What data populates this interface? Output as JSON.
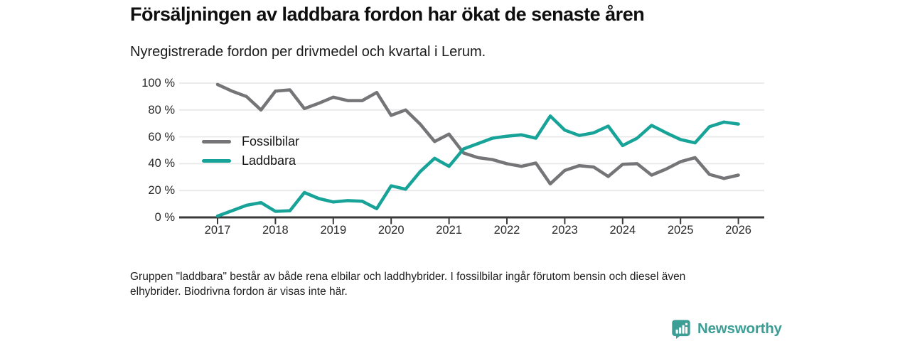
{
  "header": {
    "title": "Försäljningen av laddbara fordon har ökat de senaste åren",
    "subtitle": "Nyregistrerade fordon per drivmedel och kvartal i Lerum."
  },
  "chart_data": {
    "type": "line",
    "title": "Försäljningen av laddbara fordon har ökat de senaste åren",
    "subtitle": "Nyregistrerade fordon per drivmedel och kvartal i Lerum.",
    "x_tick_labels": [
      "2017",
      "2018",
      "2019",
      "2020",
      "2021",
      "2022",
      "2023",
      "2024",
      "2025",
      "2026"
    ],
    "points_per_year": 4,
    "x_range": [
      "2017 Q1",
      "2026 Q1"
    ],
    "y_ticks": [
      0,
      20,
      40,
      60,
      80,
      100
    ],
    "y_tick_suffix": " %",
    "ylim": [
      0,
      100
    ],
    "grid": "horizontal",
    "legend_position": "inside-left",
    "series": [
      {
        "name": "Fossilbilar",
        "color": "#757578",
        "values": [
          99,
          94,
          90,
          80,
          94,
          95,
          81,
          85,
          89.5,
          87,
          87,
          93,
          76,
          80,
          69.5,
          56.5,
          62,
          48,
          44.5,
          43,
          40,
          38,
          40.5,
          25,
          35,
          38.5,
          37.5,
          30.5,
          39.5,
          40,
          31.5,
          36,
          41.5,
          44.5,
          32,
          29,
          31.5
        ]
      },
      {
        "name": "Laddbara",
        "color": "#17A398",
        "values": [
          1,
          5,
          9,
          11,
          4.5,
          5,
          18.5,
          14,
          11.5,
          12.5,
          12,
          6.5,
          23.5,
          21,
          34,
          44,
          38,
          51,
          55,
          59,
          60.5,
          61.5,
          59,
          75.5,
          65,
          61,
          63,
          68,
          53.5,
          59,
          68.5,
          63,
          58,
          55.5,
          67.5,
          71,
          69.5
        ]
      }
    ],
    "footnote_lines": [
      "Gruppen \"laddbara\" består av både rena elbilar och laddhybrider. I fossilbilar ingår förutom bensin och diesel även",
      "elhybrider. Biodrivna fordon är visas inte här."
    ]
  },
  "logo": {
    "text": "Newsworthy",
    "color": "#3D9E96"
  }
}
